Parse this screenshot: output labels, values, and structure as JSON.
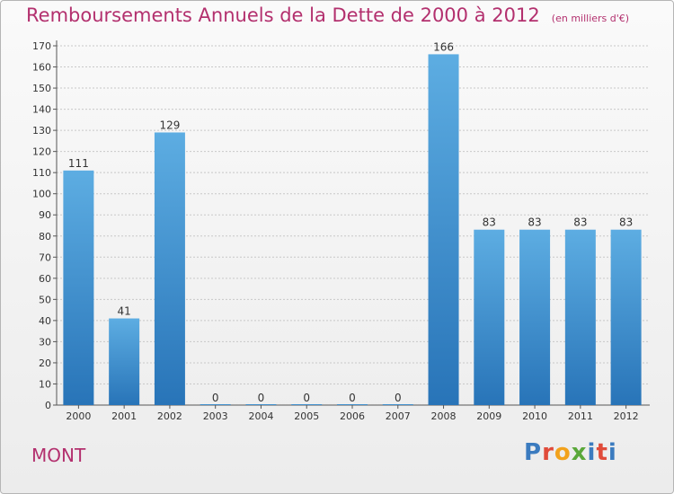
{
  "header": {
    "title": "Remboursements Annuels de la Dette de 2000 à 2012",
    "unit_note": "(en milliers d'€)"
  },
  "footer": {
    "commune": "MONT",
    "logo_text": "Proxiti"
  },
  "colors": {
    "bar_top": "#5dade2",
    "bar_bottom": "#2874b8",
    "accent": "#b3306e",
    "grid": "#c8c8c8"
  },
  "chart_data": {
    "type": "bar",
    "title": "Remboursements Annuels de la Dette de 2000 à 2012",
    "subtitle": "(en milliers d'€)",
    "categories": [
      "2000",
      "2001",
      "2002",
      "2003",
      "2004",
      "2005",
      "2006",
      "2007",
      "2008",
      "2009",
      "2010",
      "2011",
      "2012"
    ],
    "values": [
      111,
      41,
      129,
      0,
      0,
      0,
      0,
      0,
      166,
      83,
      83,
      83,
      83
    ],
    "data_labels": [
      "111",
      "41",
      "129",
      "0",
      "0",
      "0",
      "0",
      "0",
      "166",
      "83",
      "83",
      "83",
      "83"
    ],
    "y_ticks": [
      0,
      10,
      20,
      30,
      40,
      50,
      60,
      70,
      80,
      90,
      100,
      110,
      120,
      130,
      140,
      150,
      160,
      170
    ],
    "ylim": [
      0,
      170
    ],
    "xlabel": "",
    "ylabel": "",
    "grid": true,
    "legend": "none"
  }
}
